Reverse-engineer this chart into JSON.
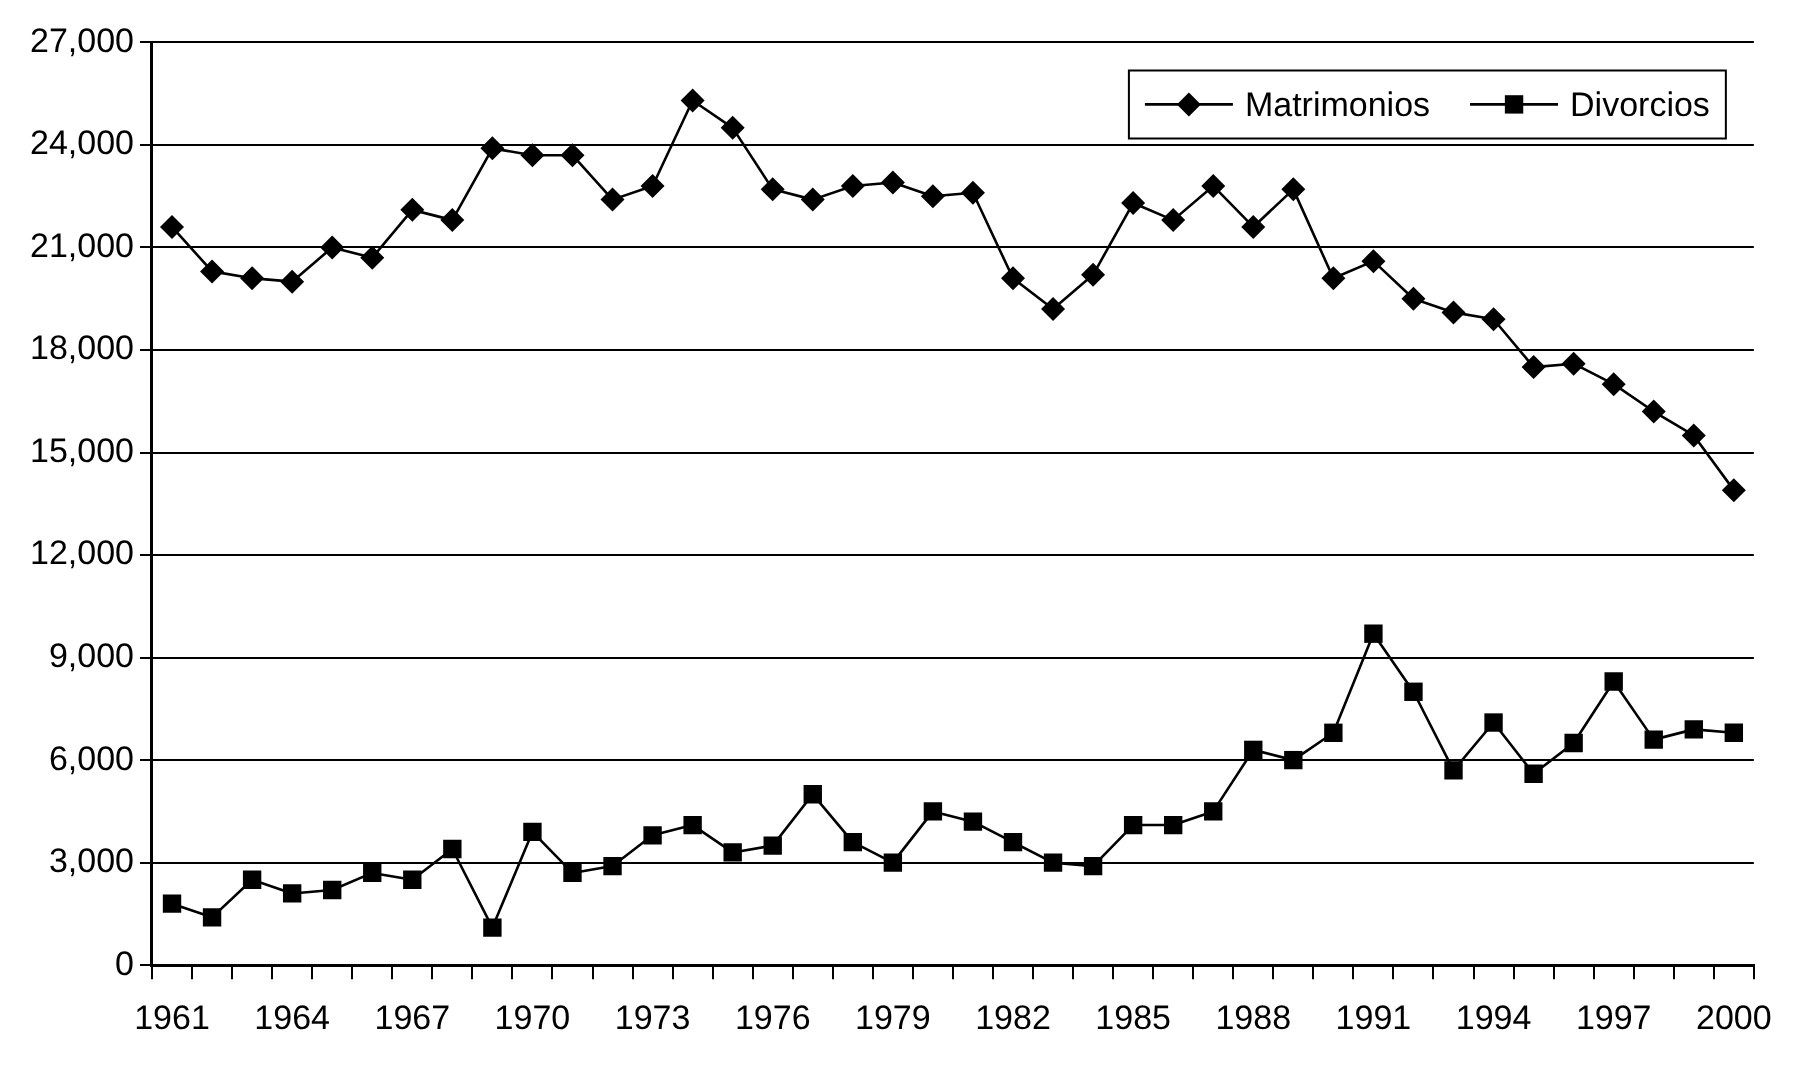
{
  "chart_data": {
    "type": "line",
    "categories": [
      "1961",
      null,
      null,
      "1964",
      null,
      null,
      "1967",
      null,
      null,
      "1970",
      null,
      null,
      "1973",
      null,
      null,
      "1976",
      null,
      null,
      "1979",
      null,
      null,
      "1982",
      null,
      null,
      "1985",
      null,
      null,
      "1988",
      null,
      null,
      "1991",
      null,
      null,
      "1994",
      null,
      null,
      "1997",
      null,
      null,
      "2000"
    ],
    "series": [
      {
        "name": "Matrimonios",
        "color": "#000000",
        "marker": "diamond",
        "values": [
          21600,
          20300,
          20100,
          20000,
          21000,
          20700,
          22100,
          21800,
          23900,
          23700,
          23700,
          22400,
          22800,
          25300,
          24500,
          22700,
          22400,
          22800,
          22900,
          22500,
          22600,
          20100,
          19200,
          20200,
          22300,
          21800,
          22800,
          21600,
          22700,
          20100,
          20600,
          19500,
          19100,
          18900,
          17500,
          17600,
          17000,
          16200,
          15500,
          13900
        ]
      },
      {
        "name": "Divorcios",
        "color": "#000000",
        "marker": "square",
        "values": [
          1800,
          1400,
          2500,
          2100,
          2200,
          2700,
          2500,
          3400,
          1100,
          3900,
          2700,
          2900,
          3800,
          4100,
          3300,
          3500,
          5000,
          3600,
          3000,
          4500,
          4200,
          3600,
          3000,
          2900,
          4100,
          4100,
          4500,
          6300,
          6000,
          6800,
          9700,
          8000,
          5700,
          7100,
          5600,
          6500,
          8300,
          6600,
          6900,
          6800
        ]
      }
    ],
    "ylim": [
      0,
      27000
    ],
    "yticks": [
      {
        "value": 0,
        "label": "0"
      },
      {
        "value": 3000,
        "label": "3,000"
      },
      {
        "value": 6000,
        "label": "6,000"
      },
      {
        "value": 9000,
        "label": "9,000"
      },
      {
        "value": 12000,
        "label": "12,000"
      },
      {
        "value": 15000,
        "label": "15,000"
      },
      {
        "value": 18000,
        "label": "18,000"
      },
      {
        "value": 21000,
        "label": "21,000"
      },
      {
        "value": 24000,
        "label": "24,000"
      },
      {
        "value": 27000,
        "label": "27,000"
      }
    ],
    "grid": "y",
    "legend": "top right",
    "line_style": "solid"
  }
}
